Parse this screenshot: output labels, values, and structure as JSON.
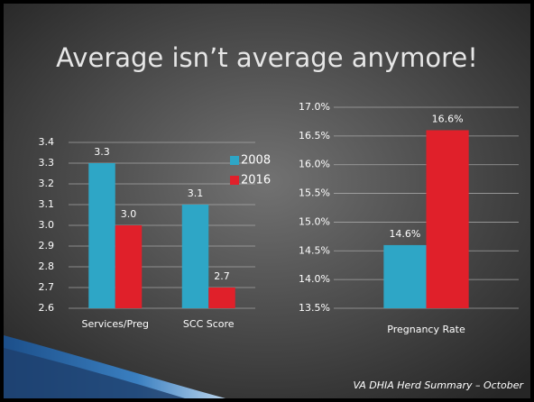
{
  "title": "Average isn’t average anymore!",
  "footer": "VA DHIA Herd Summary – October",
  "chart_data": [
    {
      "type": "bar",
      "categories": [
        "Services/Preg",
        "SCC Score"
      ],
      "series": [
        {
          "name": "2008",
          "color": "#2ea6c6",
          "values": [
            3.3,
            3.1
          ]
        },
        {
          "name": "2016",
          "color": "#e0202a",
          "values": [
            3,
            2.7
          ],
          "value_labels": [
            "3.0",
            "2.7"
          ]
        }
      ],
      "ylim": [
        2.6,
        3.4
      ],
      "yticks": [
        2.6,
        2.7,
        2.8,
        2.9,
        {
          "value": 3,
          "label": "3.0"
        },
        3.1,
        3.2,
        3.3,
        3.4
      ],
      "grid": true,
      "legend": "top-right"
    },
    {
      "type": "bar",
      "categories": [
        "Pregnancy Rate"
      ],
      "series": [
        {
          "color": "#2ea6c6",
          "values": [
            14.6
          ],
          "value_labels": [
            "14.6%"
          ]
        },
        {
          "color": "#e0202a",
          "values": [
            16.6
          ],
          "value_labels": [
            "16.6%"
          ]
        }
      ],
      "ylim": [
        13.5,
        17
      ],
      "yticks": [
        {
          "value": 13.5,
          "label": "13.5%"
        },
        {
          "value": 14,
          "label": "14.0%"
        },
        {
          "value": 14.5,
          "label": "14.5%"
        },
        {
          "value": 15,
          "label": "15.0%"
        },
        {
          "value": 15.5,
          "label": "15.5%"
        },
        {
          "value": 16,
          "label": "16.0%"
        },
        {
          "value": 16.5,
          "label": "16.5%"
        },
        {
          "value": 17,
          "label": "17.0%"
        }
      ],
      "grid": true
    }
  ]
}
